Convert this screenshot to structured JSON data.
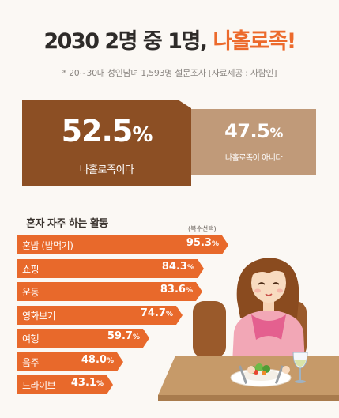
{
  "title": {
    "main": "2030 2명 중 1명,",
    "accent": "나홀로족!"
  },
  "subtitle": "* 20~30대 성인남녀 1,593명 설문조사 [자료제공 : 사람인]",
  "split": {
    "left": {
      "value": "52.5",
      "unit": "%",
      "label": "나홀로족이다"
    },
    "right": {
      "value": "47.5",
      "unit": "%",
      "label": "나홀로족이 아니다"
    }
  },
  "chart_data": {
    "type": "bar",
    "orientation": "horizontal",
    "title": "혼자 자주 하는 활동",
    "note": "(복수선택)",
    "categories": [
      "혼밥 (밥먹기)",
      "쇼핑",
      "운동",
      "영화보기",
      "여행",
      "음주",
      "드라이브"
    ],
    "values": [
      95.3,
      84.3,
      83.6,
      74.7,
      59.7,
      48.0,
      43.1
    ],
    "value_labels": [
      "95.3",
      "84.3",
      "83.6",
      "74.7",
      "59.7",
      "48.0",
      "43.1"
    ],
    "unit": "%",
    "xlim": [
      0,
      100
    ],
    "bar_color": "#e8692b"
  },
  "colors": {
    "accent": "#ec6a2c",
    "box_dark": "#8c4f24",
    "box_light": "#c09a79",
    "title": "#2e2b29"
  }
}
